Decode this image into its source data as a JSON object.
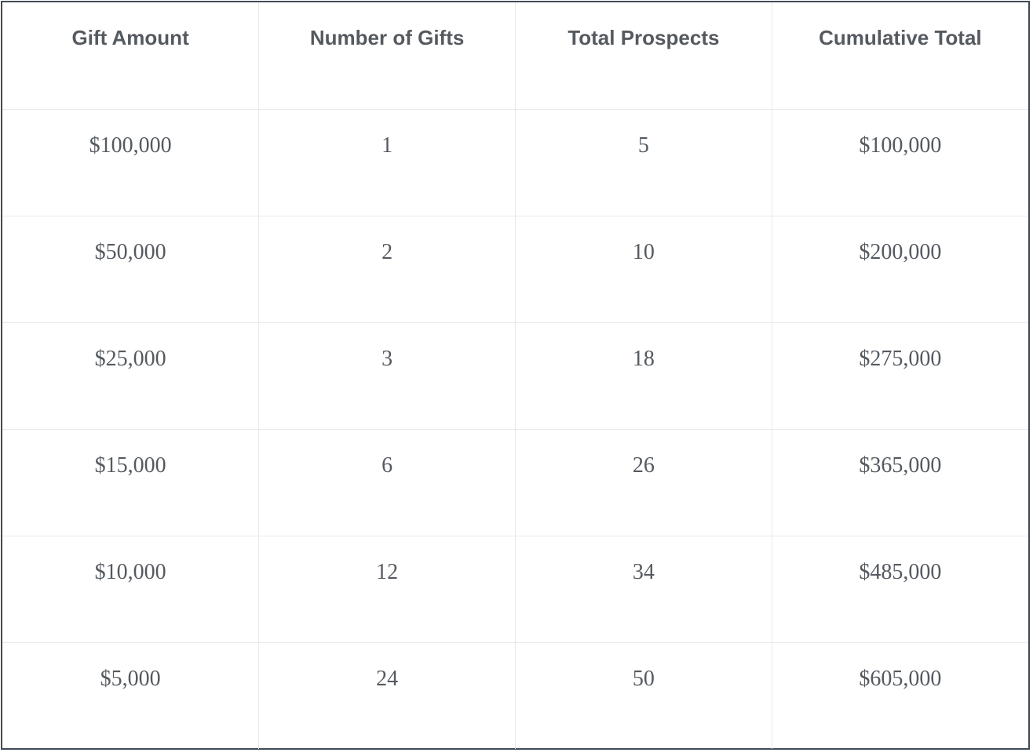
{
  "table": {
    "headers": [
      "Gift Amount",
      "Number of Gifts",
      "Total Prospects",
      "Cumulative Total"
    ],
    "rows": [
      [
        "$100,000",
        "1",
        "5",
        "$100,000"
      ],
      [
        "$50,000",
        "2",
        "10",
        "$200,000"
      ],
      [
        "$25,000",
        "3",
        "18",
        "$275,000"
      ],
      [
        "$15,000",
        "6",
        "26",
        "$365,000"
      ],
      [
        "$10,000",
        "12",
        "34",
        "$485,000"
      ],
      [
        "$5,000",
        "24",
        "50",
        "$605,000"
      ]
    ]
  }
}
